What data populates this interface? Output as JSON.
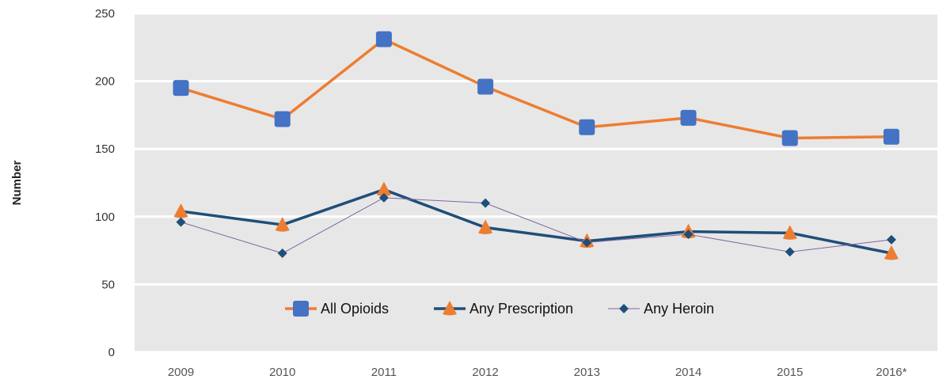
{
  "chart_data": {
    "type": "line",
    "title": "",
    "xlabel": "",
    "ylabel": "Number",
    "ylim": [
      0,
      250
    ],
    "yticks": [
      "0",
      "50",
      "100",
      "150",
      "200",
      "250"
    ],
    "categories": [
      "2009",
      "2010",
      "2011",
      "2012",
      "2013",
      "2014",
      "2015",
      "2016*"
    ],
    "grid": true,
    "legend_position": "bottom-center",
    "series": [
      {
        "name": "All Opioids",
        "values": [
          195,
          172,
          231,
          196,
          166,
          173,
          158,
          159
        ],
        "line_color": "#ED7D31",
        "marker_color": "#4472C4",
        "marker": "square"
      },
      {
        "name": "Any Prescription",
        "values": [
          104,
          94,
          120,
          92,
          82,
          89,
          88,
          73
        ],
        "line_color": "#1F4E79",
        "marker_color": "#ED7D31",
        "marker": "triangle"
      },
      {
        "name": "Any Heroin",
        "values": [
          96,
          73,
          114,
          110,
          81,
          87,
          74,
          83
        ],
        "line_color": "#8064A2",
        "marker_color": "#1F4E79",
        "marker": "diamond"
      }
    ]
  }
}
